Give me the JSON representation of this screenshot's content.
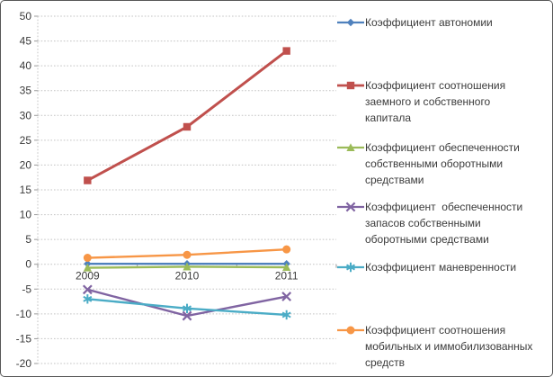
{
  "chart_data": {
    "type": "line",
    "title": "",
    "xlabel": "",
    "ylabel": "",
    "categories": [
      "2009",
      "2010",
      "2011"
    ],
    "series": [
      {
        "name": "Коэффициент автономии",
        "legend_lines": [
          "Коэффициент автономии"
        ],
        "color": "#4F81BD",
        "marker": "diamond",
        "values": [
          0.1,
          0.1,
          0.1
        ]
      },
      {
        "name": "Коэффициент соотношения заемного и собственного капитала",
        "legend_lines": [
          "Коэффициент соотношения",
          "заемного и собственного",
          "капитала"
        ],
        "color": "#C0504D",
        "marker": "square",
        "values": [
          16.9,
          27.7,
          43.0
        ]
      },
      {
        "name": "Коэффициент обеспеченности собственными оборотными средствами",
        "legend_lines": [
          "Коэффициент обеспеченности",
          "собственными оборотными",
          "средствами"
        ],
        "color": "#9BBB59",
        "marker": "triangle",
        "values": [
          -0.7,
          -0.5,
          -0.6
        ]
      },
      {
        "name": "Коэффициент обеспеченности запасов собственными оборотными средствами",
        "legend_lines": [
          "Коэффициент  обеспеченности",
          "запасов собственными",
          "оборотными средствами"
        ],
        "color": "#8064A2",
        "marker": "x",
        "values": [
          -5.1,
          -10.4,
          -6.5
        ]
      },
      {
        "name": "Коэффициент маневренности",
        "legend_lines": [
          "Коэффициент маневренности"
        ],
        "color": "#4BACC6",
        "marker": "asterisk",
        "values": [
          -7.0,
          -8.9,
          -10.2
        ]
      },
      {
        "name": "Коэффициент соотношения мобильных и иммобилизованных средств",
        "legend_lines": [
          "Коэффициент соотношения",
          "мобильных и иммобилизованных",
          "средств"
        ],
        "color": "#F79646",
        "marker": "circle",
        "values": [
          1.3,
          1.9,
          3.0
        ]
      }
    ],
    "ylim": [
      -20,
      50
    ],
    "ytick_step": 5,
    "yticks": [
      "50",
      "45",
      "40",
      "35",
      "30",
      "25",
      "20",
      "15",
      "10",
      "5",
      "0",
      "-5",
      "-10",
      "-15",
      "-20"
    ],
    "grid": true,
    "gridline_color": "#C3C3C3",
    "tick_label_color": "#3b3b3b",
    "legend_position": "right"
  }
}
